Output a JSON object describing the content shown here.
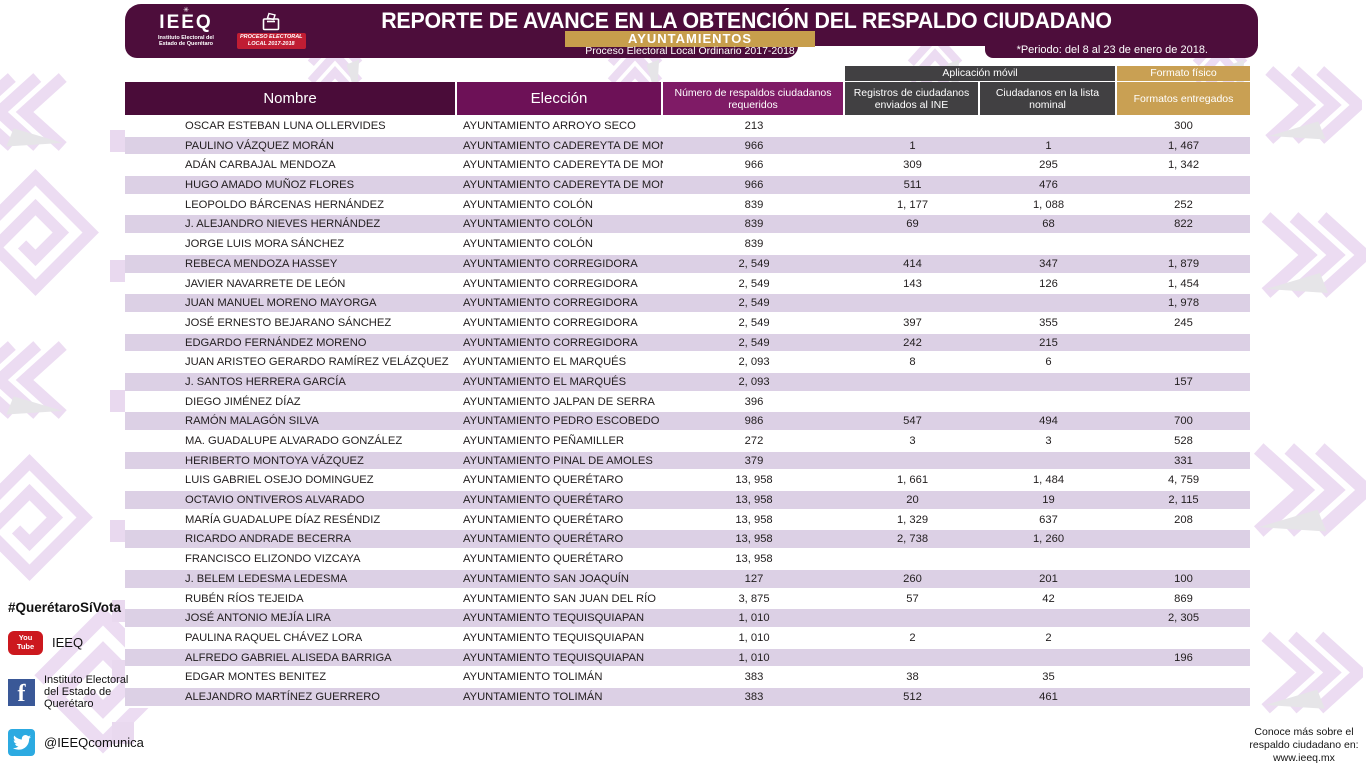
{
  "header": {
    "title": "REPORTE DE AVANCE EN LA OBTENCIÓN DEL RESPALDO CIUDADANO",
    "subtitle_badge": "AYUNTAMIENTOS",
    "process_line": "Proceso Electoral Local Ordinario 2017-2018",
    "period_note": "*Periodo: del 8 al 23 de enero de 2018.",
    "logo_mark": "IEEQ",
    "logo_subtext_line1": "Instituto Electoral del",
    "logo_subtext_line2": "Estado de Querétaro",
    "process_badge_line1": "PROCESO ELECTORAL",
    "process_badge_line2": "LOCAL 2017-2018"
  },
  "table": {
    "group_headers": {
      "mobile_app": "Aplicación móvil",
      "physical_format": "Formato físico"
    },
    "columns": [
      "Nombre",
      "Elección",
      "Número de respaldos ciudadanos requeridos",
      "Registros de ciudadanos enviados al INE",
      "Ciudadanos en la lista nominal",
      "Formatos entregados"
    ],
    "rows": [
      {
        "name": "OSCAR ESTEBAN LUNA OLLERVIDES",
        "eleccion": "AYUNTAMIENTO ARROYO SECO",
        "requeridos": "213",
        "registros_ine": "",
        "lista_nominal": "",
        "formatos": "300"
      },
      {
        "name": "PAULINO VÁZQUEZ MORÁN",
        "eleccion": "AYUNTAMIENTO CADEREYTA DE MONTES",
        "requeridos": "966",
        "registros_ine": "1",
        "lista_nominal": "1",
        "formatos": "1, 467"
      },
      {
        "name": "ADÁN CARBAJAL MENDOZA",
        "eleccion": "AYUNTAMIENTO CADEREYTA DE MONTES",
        "requeridos": "966",
        "registros_ine": "309",
        "lista_nominal": "295",
        "formatos": "1, 342"
      },
      {
        "name": "HUGO AMADO MUÑOZ FLORES",
        "eleccion": "AYUNTAMIENTO CADEREYTA DE MONTES",
        "requeridos": "966",
        "registros_ine": "511",
        "lista_nominal": "476",
        "formatos": ""
      },
      {
        "name": "LEOPOLDO BÁRCENAS HERNÁNDEZ",
        "eleccion": "AYUNTAMIENTO COLÓN",
        "requeridos": "839",
        "registros_ine": "1, 177",
        "lista_nominal": "1, 088",
        "formatos": "252"
      },
      {
        "name": "J. ALEJANDRO NIEVES HERNÁNDEZ",
        "eleccion": "AYUNTAMIENTO COLÓN",
        "requeridos": "839",
        "registros_ine": "69",
        "lista_nominal": "68",
        "formatos": "822"
      },
      {
        "name": "JORGE LUIS MORA SÁNCHEZ",
        "eleccion": "AYUNTAMIENTO COLÓN",
        "requeridos": "839",
        "registros_ine": "",
        "lista_nominal": "",
        "formatos": ""
      },
      {
        "name": "REBECA MENDOZA HASSEY",
        "eleccion": "AYUNTAMIENTO CORREGIDORA",
        "requeridos": "2, 549",
        "registros_ine": "414",
        "lista_nominal": "347",
        "formatos": "1, 879"
      },
      {
        "name": "JAVIER NAVARRETE DE LEÓN",
        "eleccion": "AYUNTAMIENTO CORREGIDORA",
        "requeridos": "2, 549",
        "registros_ine": "143",
        "lista_nominal": "126",
        "formatos": "1, 454"
      },
      {
        "name": "JUAN MANUEL MORENO MAYORGA",
        "eleccion": "AYUNTAMIENTO CORREGIDORA",
        "requeridos": "2, 549",
        "registros_ine": "",
        "lista_nominal": "",
        "formatos": "1, 978"
      },
      {
        "name": "JOSÉ ERNESTO BEJARANO SÁNCHEZ",
        "eleccion": "AYUNTAMIENTO CORREGIDORA",
        "requeridos": "2, 549",
        "registros_ine": "397",
        "lista_nominal": "355",
        "formatos": "245"
      },
      {
        "name": "EDGARDO FERNÁNDEZ MORENO",
        "eleccion": "AYUNTAMIENTO CORREGIDORA",
        "requeridos": "2, 549",
        "registros_ine": "242",
        "lista_nominal": "215",
        "formatos": ""
      },
      {
        "name": "JUAN ARISTEO GERARDO RAMÍREZ VELÁZQUEZ",
        "eleccion": "AYUNTAMIENTO EL MARQUÉS",
        "requeridos": "2, 093",
        "registros_ine": "8",
        "lista_nominal": "6",
        "formatos": ""
      },
      {
        "name": "J. SANTOS HERRERA GARCÍA",
        "eleccion": "AYUNTAMIENTO EL MARQUÉS",
        "requeridos": "2, 093",
        "registros_ine": "",
        "lista_nominal": "",
        "formatos": "157"
      },
      {
        "name": "DIEGO JIMÉNEZ DÍAZ",
        "eleccion": "AYUNTAMIENTO JALPAN DE SERRA",
        "requeridos": "396",
        "registros_ine": "",
        "lista_nominal": "",
        "formatos": ""
      },
      {
        "name": "RAMÓN MALAGÓN SILVA",
        "eleccion": "AYUNTAMIENTO PEDRO ESCOBEDO",
        "requeridos": "986",
        "registros_ine": "547",
        "lista_nominal": "494",
        "formatos": "700"
      },
      {
        "name": "MA. GUADALUPE ALVARADO GONZÁLEZ",
        "eleccion": "AYUNTAMIENTO PEÑAMILLER",
        "requeridos": "272",
        "registros_ine": "3",
        "lista_nominal": "3",
        "formatos": "528"
      },
      {
        "name": "HERIBERTO MONTOYA VÁZQUEZ",
        "eleccion": "AYUNTAMIENTO PINAL DE AMOLES",
        "requeridos": "379",
        "registros_ine": "",
        "lista_nominal": "",
        "formatos": "331"
      },
      {
        "name": "LUIS GABRIEL OSEJO DOMINGUEZ",
        "eleccion": "AYUNTAMIENTO QUERÉTARO",
        "requeridos": "13, 958",
        "registros_ine": "1, 661",
        "lista_nominal": "1, 484",
        "formatos": "4, 759"
      },
      {
        "name": "OCTAVIO ONTIVEROS ALVARADO",
        "eleccion": "AYUNTAMIENTO QUERÉTARO",
        "requeridos": "13, 958",
        "registros_ine": "20",
        "lista_nominal": "19",
        "formatos": "2, 115"
      },
      {
        "name": "MARÍA GUADALUPE DÍAZ RESÉNDIZ",
        "eleccion": "AYUNTAMIENTO QUERÉTARO",
        "requeridos": "13, 958",
        "registros_ine": "1, 329",
        "lista_nominal": "637",
        "formatos": "208"
      },
      {
        "name": "RICARDO ANDRADE BECERRA",
        "eleccion": "AYUNTAMIENTO QUERÉTARO",
        "requeridos": "13, 958",
        "registros_ine": "2, 738",
        "lista_nominal": "1, 260",
        "formatos": ""
      },
      {
        "name": "FRANCISCO ELIZONDO VIZCAYA",
        "eleccion": "AYUNTAMIENTO QUERÉTARO",
        "requeridos": "13, 958",
        "registros_ine": "",
        "lista_nominal": "",
        "formatos": ""
      },
      {
        "name": "J. BELEM LEDESMA LEDESMA",
        "eleccion": "AYUNTAMIENTO SAN JOAQUÍN",
        "requeridos": "127",
        "registros_ine": "260",
        "lista_nominal": "201",
        "formatos": "100"
      },
      {
        "name": "RUBÉN RÍOS TEJEIDA",
        "eleccion": "AYUNTAMIENTO SAN JUAN DEL RÍO",
        "requeridos": "3, 875",
        "registros_ine": "57",
        "lista_nominal": "42",
        "formatos": "869"
      },
      {
        "name": "JOSÉ ANTONIO MEJÍA LIRA",
        "eleccion": "AYUNTAMIENTO TEQUISQUIAPAN",
        "requeridos": "1, 010",
        "registros_ine": "",
        "lista_nominal": "",
        "formatos": "2, 305"
      },
      {
        "name": "PAULINA RAQUEL CHÁVEZ LORA",
        "eleccion": "AYUNTAMIENTO TEQUISQUIAPAN",
        "requeridos": "1, 010",
        "registros_ine": "2",
        "lista_nominal": "2",
        "formatos": ""
      },
      {
        "name": "ALFREDO GABRIEL ALISEDA BARRIGA",
        "eleccion": "AYUNTAMIENTO TEQUISQUIAPAN",
        "requeridos": "1, 010",
        "registros_ine": "",
        "lista_nominal": "",
        "formatos": "196"
      },
      {
        "name": "EDGAR MONTES BENITEZ",
        "eleccion": "AYUNTAMIENTO TOLIMÁN",
        "requeridos": "383",
        "registros_ine": "38",
        "lista_nominal": "35",
        "formatos": ""
      },
      {
        "name": "ALEJANDRO MARTÍNEZ GUERRERO",
        "eleccion": "AYUNTAMIENTO TOLIMÁN",
        "requeridos": "383",
        "registros_ine": "512",
        "lista_nominal": "461",
        "formatos": ""
      }
    ]
  },
  "footer": {
    "hashtag": "#QuerétaroSíVota",
    "social": [
      {
        "network": "youtube",
        "label": "IEEQ"
      },
      {
        "network": "facebook",
        "label": "Instituto Electoral del Estado de Querétaro"
      },
      {
        "network": "twitter",
        "label": "@IEEQcomunica"
      }
    ],
    "youtube_icon_line1": "You",
    "youtube_icon_line2": "Tube",
    "facebook_icon_letter": "f",
    "more_info": "Conoce más sobre el respaldo ciudadano en:",
    "website": "www.ieeq.mx"
  },
  "colors": {
    "banner_purple": "#4d0d3b",
    "header_dark_purple": "#4a0c39",
    "header_mid_purple": "#6d1157",
    "header_light_purple": "#7f1b66",
    "header_gray": "#414042",
    "gold": "#c9a053",
    "row_stripe": "#dcd0e5",
    "badge_red": "#c01d33"
  }
}
